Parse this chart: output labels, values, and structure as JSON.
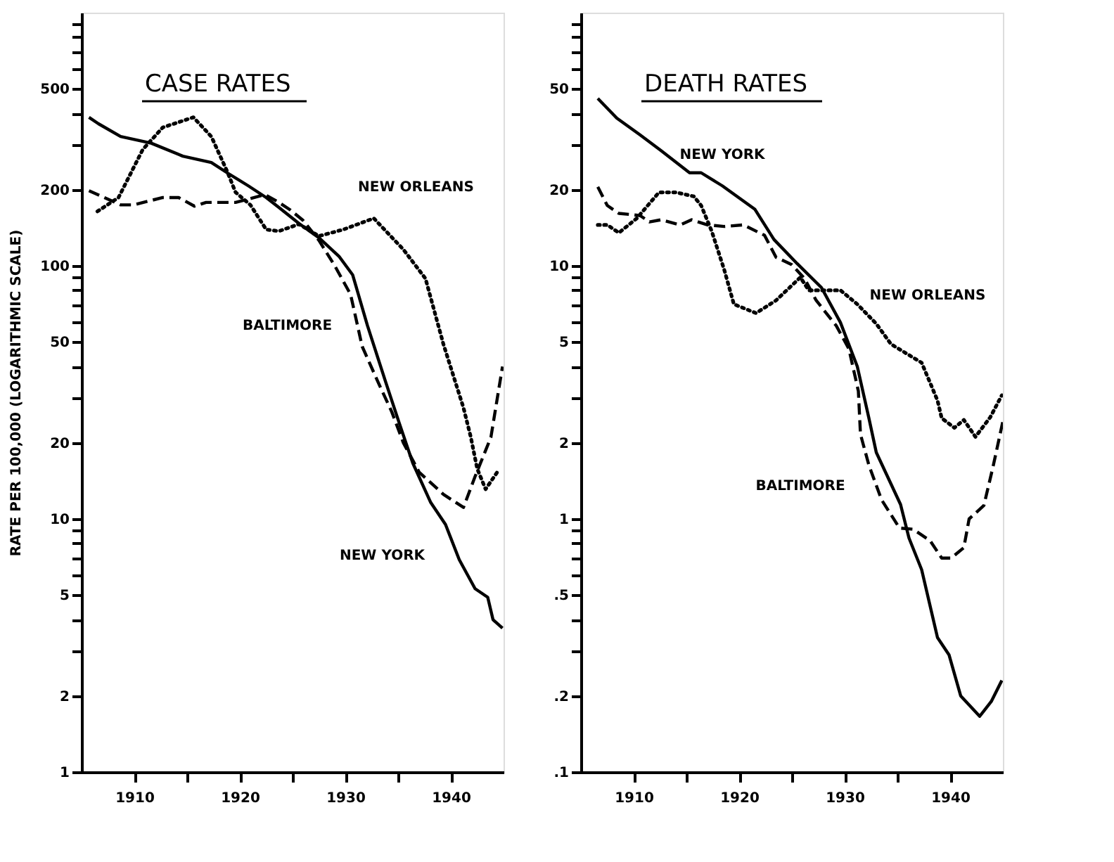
{
  "chart_data": [
    {
      "type": "line",
      "title": "CASE RATES",
      "ylabel": "RATE PER 100,000 (LOGARITHMIC SCALE)",
      "log": "y",
      "grid": false,
      "xlim": [
        1905,
        1945
      ],
      "xticks": [
        1910,
        {
          "value": 1915,
          "label": null
        },
        1920,
        {
          "value": 1925,
          "label": null
        },
        1930,
        {
          "value": 1935,
          "label": null
        },
        1940
      ],
      "ylim": [
        1,
        1000
      ],
      "yticks": [
        1,
        2,
        {
          "value": 3,
          "label": null
        },
        {
          "value": 4,
          "label": null
        },
        5,
        {
          "value": 6,
          "label": null
        },
        {
          "value": 7,
          "label": null
        },
        {
          "value": 8,
          "label": null
        },
        {
          "value": 9,
          "label": null
        },
        10,
        20,
        {
          "value": 30,
          "label": null
        },
        {
          "value": 40,
          "label": null
        },
        50,
        {
          "value": 60,
          "label": null
        },
        {
          "value": 70,
          "label": null
        },
        {
          "value": 80,
          "label": null
        },
        {
          "value": 90,
          "label": null
        },
        100,
        200,
        {
          "value": 300,
          "label": null
        },
        {
          "value": 400,
          "label": null
        },
        500,
        {
          "value": 600,
          "label": null
        },
        {
          "value": 700,
          "label": null
        },
        {
          "value": 800,
          "label": null
        },
        {
          "value": 900,
          "label": null
        }
      ],
      "series": [
        {
          "color": "#000000",
          "line_style": "solid",
          "x": [
            1905.7,
            1906.6,
            1908.7,
            1911.6,
            1914.6,
            1917.3,
            1918.8,
            1920.8,
            1922.5,
            1923.7,
            1925.6,
            1927.5,
            1929.4,
            1930.7,
            1932.1,
            1933.8,
            1935.1,
            1936.4,
            1938.1,
            1939.5,
            1940.8,
            1942.3,
            1943.5,
            1944,
            1944.9
          ],
          "values": [
            386,
            364,
            324,
            305,
            271,
            256,
            233,
            207,
            186,
            170,
            147,
            129,
            109,
            92,
            58,
            35,
            24,
            16.6,
            11.6,
            9.5,
            6.9,
            5.3,
            4.9,
            4.0,
            3.7
          ]
        },
        {
          "color": "#000000",
          "line_style": "dashed",
          "x": [
            1905.7,
            1908.7,
            1909.9,
            1912.7,
            1914.2,
            1915.7,
            1916.8,
            1919.6,
            1922.4,
            1923.7,
            1924.8,
            1926,
            1927.5,
            1929,
            1930.5,
            1931.6,
            1933.2,
            1934.4,
            1935.5,
            1937,
            1939.3,
            1941.2,
            1942.3,
            1943.8,
            1944.9
          ],
          "values": [
            198,
            174,
            174,
            186,
            186,
            172,
            178,
            178,
            191,
            178,
            166,
            151,
            126,
            100,
            77,
            48,
            34,
            26.5,
            20,
            15.3,
            12.5,
            11.1,
            14.7,
            21,
            40
          ]
        },
        {
          "color": "#000000",
          "line_style": "dotted",
          "x": [
            1906.5,
            1908.5,
            1910.8,
            1912.7,
            1915.6,
            1917.3,
            1918.8,
            1919.6,
            1921,
            1922.5,
            1923.7,
            1925.6,
            1927.5,
            1929.8,
            1932.7,
            1935.5,
            1937.6,
            1939.3,
            1941.2,
            1941.9,
            1942.5,
            1943.3,
            1944.4
          ],
          "values": [
            164,
            186,
            288,
            352,
            386,
            324,
            236,
            195,
            174,
            139,
            137,
            146,
            131,
            139,
            154,
            116,
            89,
            49,
            27.5,
            21,
            15.8,
            13.1,
            15.3
          ]
        }
      ],
      "annotations": [
        {
          "text": "NEW ORLEANS",
          "x": 1932.7,
          "y": 154
        },
        {
          "text": "BALTIMORE",
          "x": 1930.5,
          "y": 77
        },
        {
          "text": "NEW YORK",
          "x": 1939.5,
          "y": 9.5
        }
      ]
    },
    {
      "type": "line",
      "title": "DEATH RATES",
      "log": "y",
      "grid": false,
      "xlim": [
        1905,
        1945
      ],
      "xticks": [
        1910,
        {
          "value": 1915,
          "label": null
        },
        1920,
        {
          "value": 1925,
          "label": null
        },
        1930,
        {
          "value": 1935,
          "label": null
        },
        1940
      ],
      "ylim": [
        0.1,
        100
      ],
      "yticks": [
        {
          "value": 0.1,
          "label": ".1"
        },
        {
          "value": 0.2,
          "label": ".2"
        },
        {
          "value": 0.3,
          "label": null
        },
        {
          "value": 0.4,
          "label": null
        },
        {
          "value": 0.5,
          "label": ".5"
        },
        {
          "value": 0.6,
          "label": null
        },
        {
          "value": 0.7,
          "label": null
        },
        {
          "value": 0.8,
          "label": null
        },
        {
          "value": 0.9,
          "label": null
        },
        1,
        2,
        {
          "value": 3,
          "label": null
        },
        {
          "value": 4,
          "label": null
        },
        5,
        {
          "value": 6,
          "label": null
        },
        {
          "value": 7,
          "label": null
        },
        {
          "value": 8,
          "label": null
        },
        {
          "value": 9,
          "label": null
        },
        10,
        20,
        {
          "value": 30,
          "label": null
        },
        {
          "value": 40,
          "label": null
        },
        50,
        {
          "value": 60,
          "label": null
        },
        {
          "value": 70,
          "label": null
        },
        {
          "value": 80,
          "label": null
        },
        {
          "value": 90,
          "label": null
        }
      ],
      "series": [
        {
          "color": "#000000",
          "line_style": "solid",
          "x": [
            1906.6,
            1908.4,
            1910.6,
            1912.6,
            1915.3,
            1916.4,
            1918.4,
            1921.5,
            1923.3,
            1925.5,
            1927.8,
            1929.6,
            1931.2,
            1932.3,
            1933,
            1935.3,
            1936.1,
            1937.3,
            1938.8,
            1939.9,
            1941,
            1942.8,
            1943.9,
            1944.9
          ],
          "values": [
            45.8,
            38.3,
            32.9,
            28.5,
            23.3,
            23.3,
            20.7,
            16.7,
            12.7,
            10.2,
            8.2,
            5.97,
            4.0,
            2.5,
            1.83,
            1.14,
            0.84,
            0.63,
            0.34,
            0.29,
            0.2,
            0.166,
            0.19,
            0.23
          ]
        },
        {
          "color": "#000000",
          "line_style": "dashed",
          "x": [
            1906.6,
            1907.5,
            1908.6,
            1910.6,
            1911.5,
            1912.6,
            1914.4,
            1915.5,
            1917,
            1918.6,
            1920.4,
            1922.4,
            1923.5,
            1925,
            1926.2,
            1927.3,
            1929.2,
            1930.4,
            1931.3,
            1931.5,
            1932.3,
            1933.5,
            1935.2,
            1936.5,
            1938.1,
            1939.2,
            1940.1,
            1941.3,
            1941.8,
            1943.2,
            1944.1,
            1945
          ],
          "values": [
            20.5,
            17.3,
            16.1,
            15.8,
            14.9,
            15.2,
            14.5,
            15.2,
            14.5,
            14.3,
            14.5,
            13.2,
            10.8,
            10.1,
            8.9,
            7.3,
            5.8,
            4.7,
            3.2,
            2.16,
            1.63,
            1.19,
            0.92,
            0.91,
            0.82,
            0.7,
            0.7,
            0.77,
            1.0,
            1.13,
            1.63,
            2.43
          ]
        },
        {
          "color": "#000000",
          "line_style": "dotted",
          "x": [
            1906.6,
            1907.5,
            1908.6,
            1910.3,
            1912.4,
            1914,
            1915.7,
            1916.4,
            1917.4,
            1918.6,
            1919.5,
            1921.6,
            1923.5,
            1925.8,
            1926.6,
            1929.6,
            1931.2,
            1933,
            1934.4,
            1937.3,
            1938.8,
            1939.2,
            1940.4,
            1941.3,
            1942.4,
            1943.8,
            1944.9
          ],
          "values": [
            14.5,
            14.5,
            13.5,
            15.4,
            19.5,
            19.5,
            18.8,
            17.3,
            13.7,
            9.6,
            7.05,
            6.5,
            7.3,
            9.0,
            8.0,
            8.0,
            7.05,
            5.9,
            4.9,
            4.14,
            2.94,
            2.5,
            2.29,
            2.46,
            2.11,
            2.52,
            3.08
          ]
        }
      ],
      "annotations": [
        {
          "text": "NEW YORK",
          "x": 1918.4,
          "y": 20.7
        },
        {
          "text": "NEW ORLEANS",
          "x": 1933.2,
          "y": 5.9
        },
        {
          "text": "BALTIMORE",
          "x": 1931.8,
          "y": 1.7
        }
      ]
    }
  ]
}
